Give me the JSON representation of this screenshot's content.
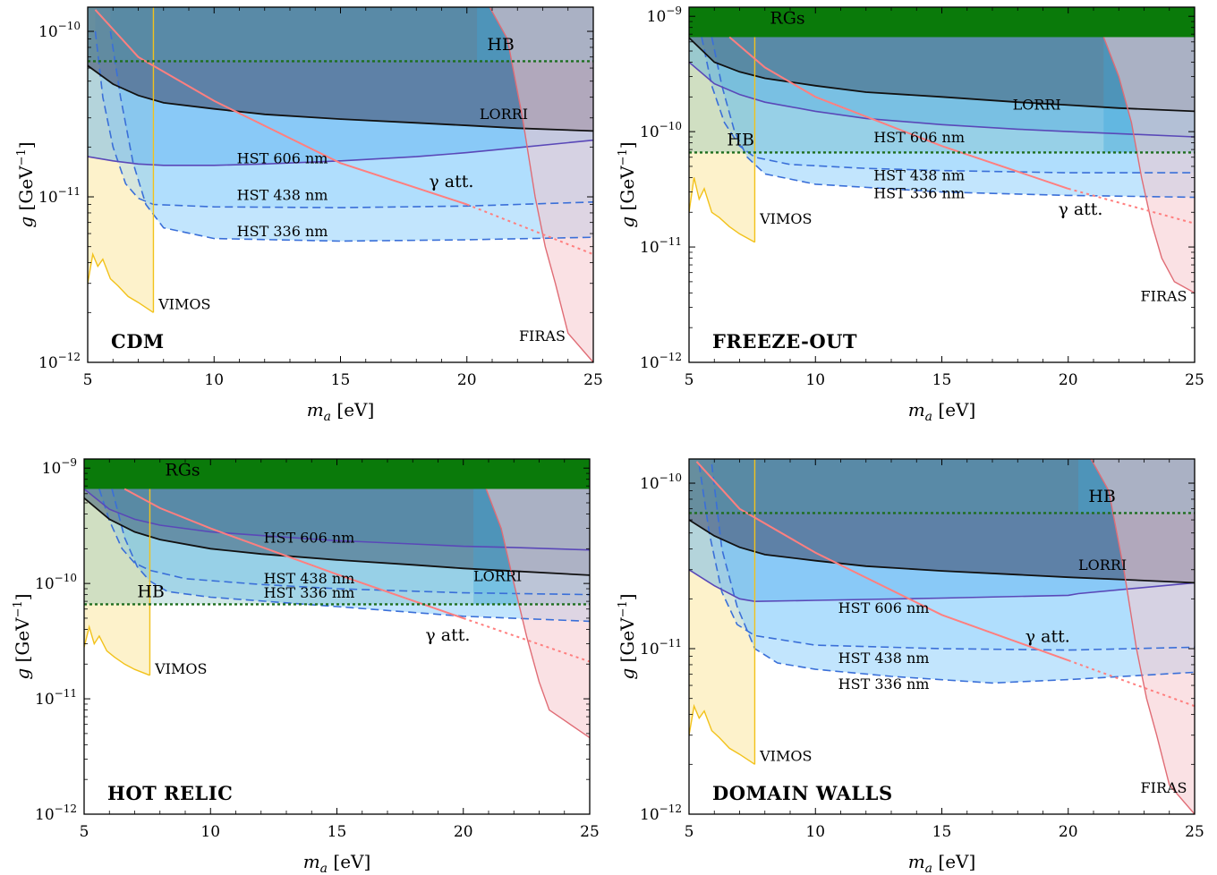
{
  "figure": {
    "xlabel_base": "m",
    "xlabel_sub": "a",
    "xlabel_unit": " [eV]",
    "ylabel_base": "g",
    "ylabel_unit": " [GeV",
    "ylabel_exp": "−1",
    "ylabel_close": "]"
  },
  "colors": {
    "vimos": "#f2c21b",
    "vimos_fill": "#fdf0c2",
    "hst_line": "#3a6fd8",
    "hst_fill": "#8fd0fb",
    "hst606_line": "#5a48b8",
    "lorri_line": "#111111",
    "lorri_fill": "#3a4566",
    "hb_fill": "#3aa6dc",
    "hb_line": "#1f6e1f",
    "rg_fill": "#0a7a0a",
    "firas_line": "#e06c75",
    "firas_fill": "#f6c9cd",
    "gamma_line": "#ff7f7f",
    "teal_overlay": "#4aa8a8"
  },
  "chart_data": [
    {
      "type": "line",
      "title": "CDM",
      "xlim": [
        5,
        25
      ],
      "ylim": [
        1e-12,
        1.4e-10
      ],
      "yscale": "log",
      "xticks": [
        5,
        10,
        15,
        20,
        25
      ],
      "ytick_labels": [
        {
          "base": "10",
          "exp": "−10",
          "value": 1e-10
        },
        {
          "base": "10",
          "exp": "−11",
          "value": 1e-11
        },
        {
          "base": "10",
          "exp": "−12",
          "value": 1e-12
        }
      ],
      "annotations": {
        "hb": "HB",
        "lorri": "LORRI",
        "hst606": "HST 606 nm",
        "hst438": "HST 438 nm",
        "hst336": "HST 336 nm",
        "gamma": "γ att.",
        "vimos": "VIMOS",
        "firas": "FIRAS"
      },
      "series": [
        {
          "name": "HB",
          "x": [
            5,
            25
          ],
          "y": [
            6.6e-11,
            6.6e-11
          ]
        },
        {
          "name": "LORRI",
          "x": [
            5,
            6,
            7,
            8,
            10,
            12,
            15,
            18,
            20,
            22,
            25
          ],
          "y": [
            6.2e-11,
            4.8e-11,
            4.1e-11,
            3.7e-11,
            3.4e-11,
            3.15e-11,
            2.95e-11,
            2.8e-11,
            2.7e-11,
            2.6e-11,
            2.5e-11
          ]
        },
        {
          "name": "HST 606 nm",
          "x": [
            5,
            6,
            7,
            8,
            10,
            12,
            15,
            18,
            20,
            22,
            25
          ],
          "y": [
            1.75e-11,
            1.65e-11,
            1.58e-11,
            1.55e-11,
            1.55e-11,
            1.58e-11,
            1.65e-11,
            1.75e-11,
            1.85e-11,
            1.98e-11,
            2.2e-11
          ]
        },
        {
          "name": "HST 438 nm",
          "x": [
            5.3,
            5.6,
            6,
            6.5,
            7,
            7.6,
            10,
            15,
            20,
            25
          ],
          "y": [
            1e-10,
            4e-11,
            2e-11,
            1.2e-11,
            9.8e-12,
            9e-12,
            8.7e-12,
            8.6e-12,
            8.8e-12,
            9.3e-12
          ]
        },
        {
          "name": "HST 336 nm",
          "x": [
            5.9,
            6.3,
            6.8,
            7.3,
            8,
            10,
            15,
            20,
            25
          ],
          "y": [
            1e-10,
            4e-11,
            1.6e-11,
            9e-12,
            6.5e-12,
            5.6e-12,
            5.4e-12,
            5.5e-12,
            5.7e-12
          ]
        },
        {
          "name": "γ att.",
          "x": [
            5.3,
            7,
            10,
            15,
            20,
            25
          ],
          "y": [
            1.35e-10,
            7e-11,
            3.8e-11,
            1.6e-11,
            9e-12,
            4.5e-12
          ]
        },
        {
          "name": "VIMOS",
          "x": [
            5,
            5.2,
            5.4,
            5.6,
            5.9,
            6.2,
            6.6,
            7,
            7.6
          ],
          "y": [
            3e-12,
            4.5e-12,
            3.8e-12,
            4.2e-12,
            3.2e-12,
            2.9e-12,
            2.5e-12,
            2.3e-12,
            2e-12
          ]
        },
        {
          "name": "FIRAS",
          "x": [
            20.9,
            21.6,
            22.2,
            22.7,
            23.1,
            23.5,
            24,
            25
          ],
          "y": [
            1.4e-10,
            9e-11,
            3e-11,
            1e-11,
            5e-12,
            3e-12,
            1.5e-12,
            1e-12
          ]
        }
      ]
    },
    {
      "type": "line",
      "title": "FREEZE-OUT",
      "xlim": [
        5,
        25
      ],
      "ylim": [
        1e-12,
        1.2e-09
      ],
      "yscale": "log",
      "xticks": [
        5,
        10,
        15,
        20,
        25
      ],
      "ytick_labels": [
        {
          "base": "10",
          "exp": "−9",
          "value": 1e-09
        },
        {
          "base": "10",
          "exp": "−10",
          "value": 1e-10
        },
        {
          "base": "10",
          "exp": "−11",
          "value": 1e-11
        },
        {
          "base": "10",
          "exp": "−12",
          "value": 1e-12
        }
      ],
      "annotations": {
        "rgs": "RGs",
        "hb": "HB",
        "lorri": "LORRI",
        "hst606": "HST 606 nm",
        "hst438": "HST 438 nm",
        "hst336": "HST 336 nm",
        "gamma": "γ att.",
        "vimos": "VIMOS",
        "firas": "FIRAS"
      },
      "series": [
        {
          "name": "RGs",
          "x": [
            5,
            25
          ],
          "y": [
            6.6e-10,
            6.6e-10
          ]
        },
        {
          "name": "HB",
          "x": [
            5,
            25
          ],
          "y": [
            6.6e-11,
            6.6e-11
          ]
        },
        {
          "name": "LORRI",
          "x": [
            5,
            6,
            7,
            8,
            10,
            12,
            15,
            18,
            20,
            22,
            25
          ],
          "y": [
            6.5e-10,
            4e-10,
            3.3e-10,
            2.9e-10,
            2.5e-10,
            2.2e-10,
            2e-10,
            1.8e-10,
            1.7e-10,
            1.6e-10,
            1.5e-10
          ]
        },
        {
          "name": "HST 606 nm",
          "x": [
            5,
            6,
            7,
            8,
            10,
            12,
            15,
            18,
            20,
            22,
            25
          ],
          "y": [
            4e-10,
            2.6e-10,
            2.1e-10,
            1.8e-10,
            1.5e-10,
            1.3e-10,
            1.15e-10,
            1.05e-10,
            1e-10,
            9.6e-11,
            9e-11
          ]
        },
        {
          "name": "HST 438 nm",
          "x": [
            5.5,
            5.9,
            6.4,
            7,
            7.6,
            9,
            12,
            15,
            20,
            25
          ],
          "y": [
            6.6e-10,
            2.5e-10,
            1.2e-10,
            7.5e-11,
            6e-11,
            5.2e-11,
            4.8e-11,
            4.6e-11,
            4.4e-11,
            4.4e-11
          ]
        },
        {
          "name": "HST 336 nm",
          "x": [
            5.9,
            6.3,
            6.8,
            7.3,
            8,
            10,
            15,
            20,
            25
          ],
          "y": [
            6.6e-10,
            2.5e-10,
            1e-10,
            6e-11,
            4.3e-11,
            3.5e-11,
            3e-11,
            2.8e-11,
            2.7e-11
          ]
        },
        {
          "name": "γ att.",
          "x": [
            6.6,
            8,
            10,
            15,
            20,
            25
          ],
          "y": [
            6.6e-10,
            3.6e-10,
            2e-10,
            7.5e-11,
            3.2e-11,
            1.6e-11
          ]
        },
        {
          "name": "VIMOS",
          "x": [
            5,
            5.2,
            5.4,
            5.6,
            5.9,
            6.2,
            6.6,
            7,
            7.6
          ],
          "y": [
            2e-11,
            4e-11,
            2.6e-11,
            3.2e-11,
            2e-11,
            1.8e-11,
            1.5e-11,
            1.3e-11,
            1.1e-11
          ]
        },
        {
          "name": "FIRAS",
          "x": [
            21.4,
            22,
            22.5,
            22.9,
            23.3,
            23.7,
            24.2,
            25
          ],
          "y": [
            6.6e-10,
            3e-10,
            1.2e-10,
            4e-11,
            1.6e-11,
            8e-12,
            5e-12,
            4e-12
          ]
        }
      ]
    },
    {
      "type": "line",
      "title": "HOT RELIC",
      "xlim": [
        5,
        25
      ],
      "ylim": [
        1e-12,
        1.2e-09
      ],
      "yscale": "log",
      "xticks": [
        5,
        10,
        15,
        20,
        25
      ],
      "ytick_labels": [
        {
          "base": "10",
          "exp": "−9",
          "value": 1e-09
        },
        {
          "base": "10",
          "exp": "−10",
          "value": 1e-10
        },
        {
          "base": "10",
          "exp": "−11",
          "value": 1e-11
        },
        {
          "base": "10",
          "exp": "−12",
          "value": 1e-12
        }
      ],
      "annotations": {
        "rgs": "RGs",
        "hb": "HB",
        "lorri": "LORRI",
        "hst606": "HST 606 nm",
        "hst438": "HST 438 nm",
        "hst336": "HST 336 nm",
        "gamma": "γ att.",
        "vimos": "VIMOS"
      },
      "series": [
        {
          "name": "RGs",
          "x": [
            5,
            25
          ],
          "y": [
            6.6e-10,
            6.6e-10
          ]
        },
        {
          "name": "HB",
          "x": [
            5,
            25
          ],
          "y": [
            6.6e-11,
            6.6e-11
          ]
        },
        {
          "name": "LORRI",
          "x": [
            5,
            6,
            7,
            8,
            10,
            12,
            15,
            18,
            20,
            22,
            25
          ],
          "y": [
            5.5e-10,
            3.6e-10,
            2.8e-10,
            2.4e-10,
            2e-10,
            1.8e-10,
            1.6e-10,
            1.45e-10,
            1.35e-10,
            1.28e-10,
            1.18e-10
          ]
        },
        {
          "name": "HST 606 nm",
          "x": [
            5,
            6,
            7,
            8,
            10,
            12,
            15,
            18,
            20,
            22,
            25
          ],
          "y": [
            6.6e-10,
            4.4e-10,
            3.6e-10,
            3.2e-10,
            2.8e-10,
            2.6e-10,
            2.35e-10,
            2.2e-10,
            2.1e-10,
            2.05e-10,
            1.95e-10
          ]
        },
        {
          "name": "HST 438 nm",
          "x": [
            5.6,
            6,
            6.5,
            7,
            7.6,
            9,
            12,
            15,
            20,
            25
          ],
          "y": [
            6.6e-10,
            3.5e-10,
            2e-10,
            1.5e-10,
            1.3e-10,
            1.1e-10,
            9.8e-11,
            9e-11,
            8.3e-11,
            8e-11
          ]
        },
        {
          "name": "HST 336 nm",
          "x": [
            6.1,
            6.6,
            7.1,
            7.6,
            8.3,
            10,
            15,
            20,
            25
          ],
          "y": [
            6.6e-10,
            2.5e-10,
            1.4e-10,
            1.05e-10,
            8.5e-11,
            7.6e-11,
            6.3e-11,
            5.2e-11,
            4.7e-11
          ]
        },
        {
          "name": "γ att.",
          "x": [
            6.6,
            8,
            10,
            15,
            20,
            25
          ],
          "y": [
            6.6e-10,
            4.5e-10,
            3e-10,
            1.2e-10,
            5e-11,
            2.1e-11
          ]
        },
        {
          "name": "VIMOS",
          "x": [
            5,
            5.2,
            5.4,
            5.6,
            5.9,
            6.2,
            6.6,
            7,
            7.6
          ],
          "y": [
            2.8e-11,
            4.2e-11,
            3e-11,
            3.5e-11,
            2.6e-11,
            2.3e-11,
            2e-11,
            1.8e-11,
            1.6e-11
          ]
        },
        {
          "name": "FIRAS",
          "x": [
            20.9,
            21.5,
            22,
            22.5,
            23,
            23.4,
            24,
            25
          ],
          "y": [
            6.6e-10,
            3e-10,
            1e-10,
            3.5e-11,
            1.4e-11,
            8e-12,
            6.5e-12,
            4.6e-12
          ]
        }
      ]
    },
    {
      "type": "line",
      "title": "DOMAIN WALLS",
      "xlim": [
        5,
        25
      ],
      "ylim": [
        1e-12,
        1.4e-10
      ],
      "yscale": "log",
      "xticks": [
        5,
        10,
        15,
        20,
        25
      ],
      "ytick_labels": [
        {
          "base": "10",
          "exp": "−10",
          "value": 1e-10
        },
        {
          "base": "10",
          "exp": "−11",
          "value": 1e-11
        },
        {
          "base": "10",
          "exp": "−12",
          "value": 1e-12
        }
      ],
      "annotations": {
        "hb": "HB",
        "lorri": "LORRI",
        "hst606": "HST 606 nm",
        "hst438": "HST 438 nm",
        "hst336": "HST 336 nm",
        "gamma": "γ att.",
        "vimos": "VIMOS",
        "firas": "FIRAS"
      },
      "series": [
        {
          "name": "HB",
          "x": [
            5,
            25
          ],
          "y": [
            6.6e-11,
            6.6e-11
          ]
        },
        {
          "name": "LORRI",
          "x": [
            5,
            6,
            7,
            8,
            10,
            12,
            15,
            18,
            20,
            22,
            25
          ],
          "y": [
            6e-11,
            4.8e-11,
            4.1e-11,
            3.7e-11,
            3.4e-11,
            3.15e-11,
            2.95e-11,
            2.8e-11,
            2.7e-11,
            2.62e-11,
            2.5e-11
          ]
        },
        {
          "name": "HST 606 nm",
          "x": [
            5,
            6,
            7,
            7.6,
            10,
            15,
            20,
            20.4,
            25
          ],
          "y": [
            3e-11,
            2.4e-11,
            2e-11,
            1.93e-11,
            1.96e-11,
            2.02e-11,
            2.1e-11,
            2.15e-11,
            2.5e-11
          ]
        },
        {
          "name": "HST 438 nm",
          "x": [
            5.4,
            5.8,
            6.3,
            6.9,
            7.6,
            10,
            15,
            20,
            25
          ],
          "y": [
            1.3e-10,
            5e-11,
            2.2e-11,
            1.4e-11,
            1.2e-11,
            1.05e-11,
            1e-11,
            9.8e-12,
            1.02e-11
          ]
        },
        {
          "name": "HST 336 nm",
          "x": [
            5.9,
            6.3,
            6.9,
            7.6,
            8.5,
            10,
            13,
            17,
            20,
            25
          ],
          "y": [
            1.3e-10,
            4e-11,
            1.8e-11,
            1e-11,
            8.2e-12,
            7.5e-12,
            6.8e-12,
            6.2e-12,
            6.5e-12,
            7.2e-12
          ]
        },
        {
          "name": "γ att.",
          "x": [
            5.3,
            7,
            10,
            15,
            20,
            25
          ],
          "y": [
            1.35e-10,
            7e-11,
            3.8e-11,
            1.6e-11,
            8.5e-12,
            4.5e-12
          ]
        },
        {
          "name": "VIMOS",
          "x": [
            5,
            5.2,
            5.4,
            5.6,
            5.9,
            6.2,
            6.6,
            7,
            7.6
          ],
          "y": [
            3e-12,
            4.5e-12,
            3.8e-12,
            4.2e-12,
            3.2e-12,
            2.9e-12,
            2.5e-12,
            2.3e-12,
            2e-12
          ]
        },
        {
          "name": "FIRAS",
          "x": [
            20.9,
            21.6,
            22.2,
            22.7,
            23.1,
            23.5,
            24,
            25
          ],
          "y": [
            1.4e-10,
            9e-11,
            3e-11,
            1e-11,
            5e-12,
            3e-12,
            1.5e-12,
            1e-12
          ]
        }
      ]
    }
  ]
}
